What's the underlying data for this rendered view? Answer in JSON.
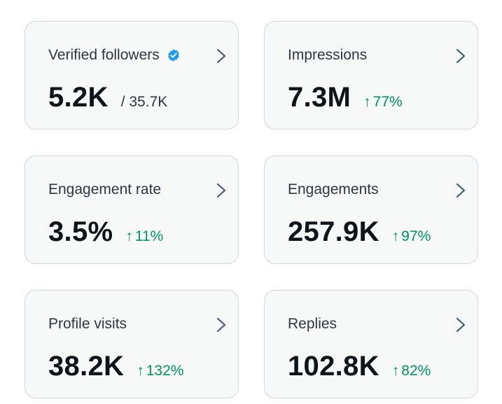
{
  "colors": {
    "card_background": "#f7f9f9",
    "card_border": "#cfd9de",
    "positive_delta": "#00935e",
    "verified_badge": "#1d9bf0",
    "chevron": "#536471"
  },
  "cards": [
    {
      "label": "Verified followers",
      "value": "5.2K",
      "suffix": "/ 35.7K",
      "verified": true
    },
    {
      "label": "Impressions",
      "value": "7.3M",
      "arrow": "↑",
      "delta": "77%"
    },
    {
      "label": "Engagement rate",
      "value": "3.5%",
      "arrow": "↑",
      "delta": "11%"
    },
    {
      "label": "Engagements",
      "value": "257.9K",
      "arrow": "↑",
      "delta": "97%"
    },
    {
      "label": "Profile visits",
      "value": "38.2K",
      "arrow": "↑",
      "delta": "132%"
    },
    {
      "label": "Replies",
      "value": "102.8K",
      "arrow": "↑",
      "delta": "82%"
    }
  ]
}
